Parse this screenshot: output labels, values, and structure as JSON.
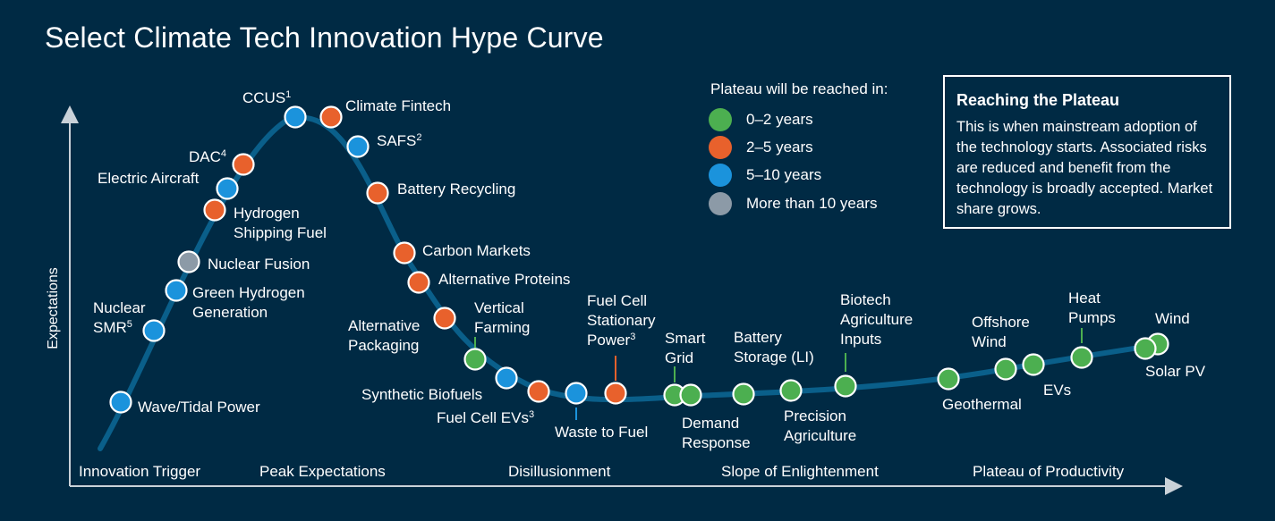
{
  "title": "Select Climate Tech Innovation Hype Curve",
  "axes": {
    "y_label": "Expectations"
  },
  "phases": [
    "Innovation Trigger",
    "Peak Expectations",
    "Disillusionment",
    "Slope of Enlightenment",
    "Plateau of Productivity"
  ],
  "legend": {
    "title": "Plateau will be reached in:",
    "items": [
      {
        "label": "0–2 years",
        "color": "#4caf50"
      },
      {
        "label": "2–5 years",
        "color": "#e8612c"
      },
      {
        "label": "5–10 years",
        "color": "#1b93dc"
      },
      {
        "label": "More than 10 years",
        "color": "#8c9aa7"
      }
    ]
  },
  "infobox": {
    "title": "Reaching the Plateau",
    "body": "This is when mainstream adoption of the technology starts. Associated risks are reduced and benefit from the technology is broadly accepted. Market share grows."
  },
  "colors": {
    "background": "#002a44",
    "curve": "#0a5f8a",
    "text": "#ffffff"
  },
  "technologies": [
    {
      "name": "Wave/Tidal Power",
      "plateau": "5–10 years"
    },
    {
      "name": "Nuclear SMR",
      "note": "5",
      "plateau": "5–10 years"
    },
    {
      "name": "Green Hydrogen Generation",
      "plateau": "5–10 years"
    },
    {
      "name": "Nuclear Fusion",
      "plateau": "More than 10 years"
    },
    {
      "name": "Hydrogen Shipping Fuel",
      "plateau": "2–5 years"
    },
    {
      "name": "Electric Aircraft",
      "plateau": "5–10 years"
    },
    {
      "name": "DAC",
      "note": "4",
      "plateau": "2–5 years"
    },
    {
      "name": "CCUS",
      "note": "1",
      "plateau": "5–10 years"
    },
    {
      "name": "Climate Fintech",
      "plateau": "2–5 years"
    },
    {
      "name": "SAFS",
      "note": "2",
      "plateau": "5–10 years"
    },
    {
      "name": "Battery Recycling",
      "plateau": "2–5 years"
    },
    {
      "name": "Carbon Markets",
      "plateau": "2–5 years"
    },
    {
      "name": "Alternative Proteins",
      "plateau": "2–5 years"
    },
    {
      "name": "Alternative Packaging",
      "plateau": "2–5 years"
    },
    {
      "name": "Vertical Farming",
      "plateau": "0–2 years"
    },
    {
      "name": "Synthetic Biofuels",
      "plateau": "5–10 years"
    },
    {
      "name": "Fuel Cell EVs",
      "note": "3",
      "plateau": "2–5 years"
    },
    {
      "name": "Waste to Fuel",
      "plateau": "5–10 years"
    },
    {
      "name": "Fuel Cell Stationary Power",
      "note": "3",
      "plateau": "2–5 years"
    },
    {
      "name": "Smart Grid",
      "plateau": "0–2 years"
    },
    {
      "name": "Demand Response",
      "plateau": "0–2 years"
    },
    {
      "name": "Battery Storage (LI)",
      "plateau": "0–2 years"
    },
    {
      "name": "Precision Agriculture",
      "plateau": "0–2 years"
    },
    {
      "name": "Biotech Agriculture Inputs",
      "plateau": "0–2 years"
    },
    {
      "name": "Geothermal",
      "plateau": "0–2 years"
    },
    {
      "name": "Offshore Wind",
      "plateau": "0–2 years"
    },
    {
      "name": "EVs",
      "plateau": "0–2 years"
    },
    {
      "name": "Heat Pumps",
      "plateau": "0–2 years"
    },
    {
      "name": "Wind",
      "plateau": "0–2 years"
    },
    {
      "name": "Solar PV",
      "plateau": "0–2 years"
    }
  ]
}
